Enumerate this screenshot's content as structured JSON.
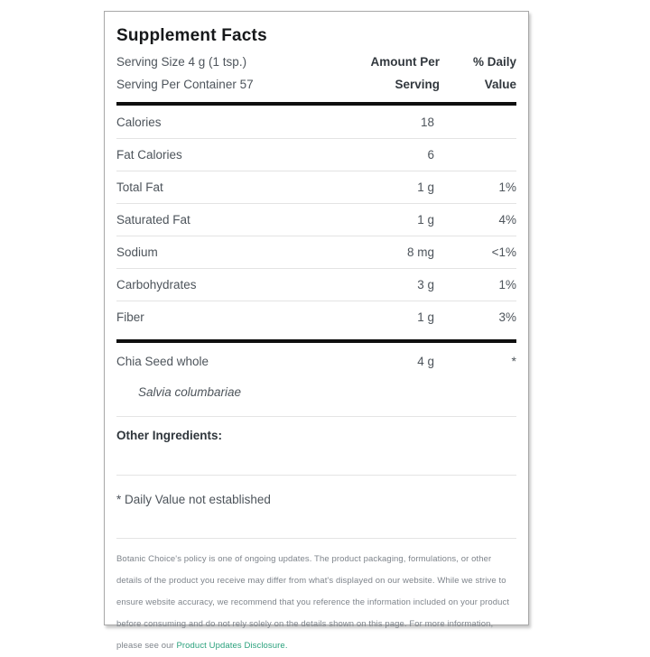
{
  "panel": {
    "title": "Supplement Facts",
    "serving_size": "Serving Size 4 g (1 tsp.)",
    "servings_per_container": "Serving Per Container 57",
    "columns": {
      "amount_line1": "Amount Per",
      "amount_line2": "Serving",
      "dv_line1": "% Daily",
      "dv_line2": "Value"
    },
    "rows": [
      {
        "label": "Calories",
        "amount": "18",
        "dv": ""
      },
      {
        "label": "Fat Calories",
        "amount": "6",
        "dv": ""
      },
      {
        "label": "Total Fat",
        "amount": "1 g",
        "dv": "1%"
      },
      {
        "label": "Saturated Fat",
        "amount": "1 g",
        "dv": "4%"
      },
      {
        "label": "Sodium",
        "amount": "8 mg",
        "dv": "<1%"
      },
      {
        "label": "Carbohydrates",
        "amount": "3 g",
        "dv": "1%"
      },
      {
        "label": "Fiber",
        "amount": "1 g",
        "dv": "3%"
      }
    ],
    "ingredient_row": {
      "label": "Chia Seed whole",
      "amount": "4 g",
      "dv": "*"
    },
    "botanical_name": "Salvia columbariae",
    "other_ingredients_label": "Other Ingredients:",
    "footnote": "* Daily Value not established",
    "disclaimer": {
      "text_before_link": "Botanic Choice's policy is one of ongoing updates. The product packaging, formulations, or other details of the product you receive may differ from what's displayed on our website. While we strive to ensure website accuracy, we recommend that you reference the information included on your product before consuming and do not rely solely on the details shown on this page. For more information, please see our ",
      "link_label": "Product Updates Disclosure."
    },
    "colors": {
      "link_accent": "#2aa17c",
      "heavy_rule": "#0f0f0f"
    }
  }
}
